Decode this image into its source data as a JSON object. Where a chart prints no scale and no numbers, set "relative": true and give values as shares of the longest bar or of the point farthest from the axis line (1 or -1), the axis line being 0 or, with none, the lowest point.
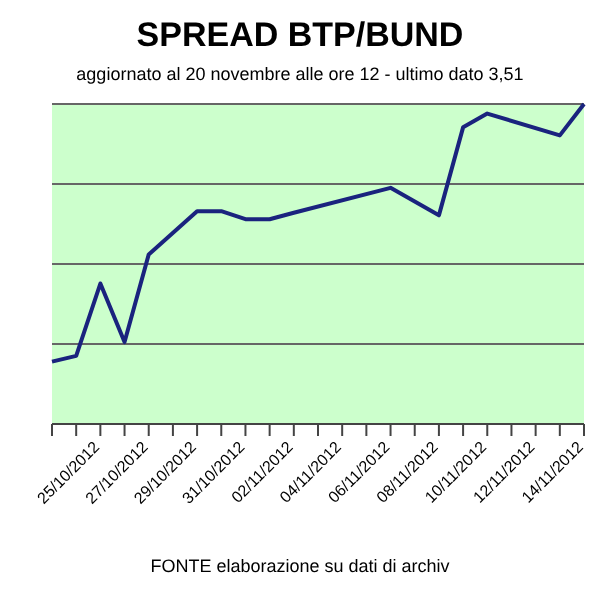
{
  "chart_data": {
    "type": "line",
    "title": "SPREAD  BTP/BUND",
    "subtitle": "aggiornato al 20 novembre alle ore 12 - ultimo dato 3,51",
    "annotations": [
      "FONTE elaborazione su dati di archiv"
    ],
    "categories": [
      null,
      null,
      "25/10/2012",
      null,
      "27/10/2012",
      null,
      "29/10/2012",
      null,
      "31/10/2012",
      null,
      "02/11/2012",
      null,
      "04/11/2012",
      null,
      "06/11/2012",
      null,
      "08/11/2012",
      null,
      "10/11/2012",
      null,
      "12/11/2012",
      null,
      "14/11/2012"
    ],
    "series": [
      {
        "color": "#1a237e",
        "values": [
          0.195,
          0.213,
          0.439,
          0.256,
          0.53,
          null,
          0.665,
          0.665,
          0.64,
          0.64,
          0.66,
          null,
          null,
          null,
          0.738,
          null,
          0.652,
          0.927,
          0.97,
          null,
          null,
          0.902,
          1
        ]
      }
    ],
    "relative": true,
    "grid": "y",
    "legend": false,
    "marker": "none",
    "line_style": "solid"
  }
}
